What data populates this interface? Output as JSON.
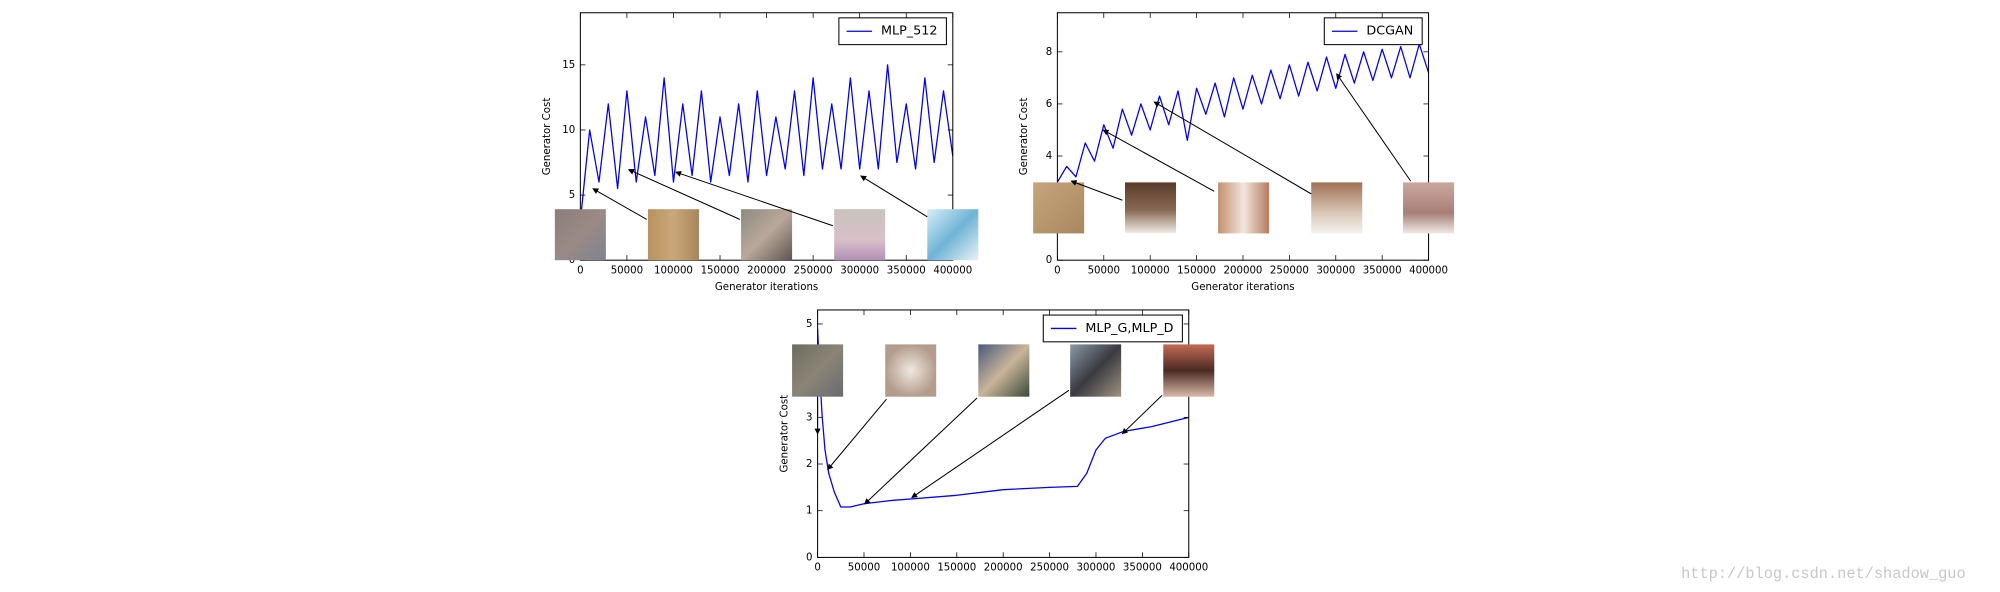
{
  "chart_data": [
    {
      "type": "line",
      "xlabel": "Generator iterations",
      "ylabel": "Generator Cost",
      "x": [
        0,
        10000,
        20000,
        30000,
        40000,
        50000,
        60000,
        70000,
        80000,
        90000,
        100000,
        110000,
        120000,
        130000,
        140000,
        150000,
        160000,
        170000,
        180000,
        190000,
        200000,
        210000,
        220000,
        230000,
        240000,
        250000,
        260000,
        270000,
        280000,
        290000,
        300000,
        310000,
        320000,
        330000,
        340000,
        350000,
        360000,
        370000,
        380000,
        390000,
        400000
      ],
      "series": [
        {
          "name": "MLP_512",
          "color": "#0000ff",
          "values": [
            3,
            10,
            6,
            12,
            5.5,
            13,
            6,
            11,
            6.5,
            14,
            6,
            12,
            6.5,
            13,
            6,
            11,
            6.5,
            12,
            6,
            13,
            6.5,
            11,
            7,
            13,
            6.5,
            14,
            7,
            12,
            7,
            14,
            7,
            13,
            7,
            15,
            7.5,
            12,
            7,
            14,
            7.5,
            13,
            8
          ]
        }
      ],
      "xlim": [
        0,
        400000
      ],
      "xticks": [
        0,
        50000,
        100000,
        150000,
        200000,
        250000,
        300000,
        350000,
        400000
      ],
      "ylim": [
        0,
        19
      ],
      "yticks": [
        0,
        5,
        10,
        15
      ],
      "legend": "upper right"
    },
    {
      "type": "line",
      "xlabel": "Generator iterations",
      "ylabel": "Generator Cost",
      "x": [
        0,
        10000,
        20000,
        30000,
        40000,
        50000,
        60000,
        70000,
        80000,
        90000,
        100000,
        110000,
        120000,
        130000,
        140000,
        150000,
        160000,
        170000,
        180000,
        190000,
        200000,
        210000,
        220000,
        230000,
        240000,
        250000,
        260000,
        270000,
        280000,
        290000,
        300000,
        310000,
        320000,
        330000,
        340000,
        350000,
        360000,
        370000,
        380000,
        390000,
        400000
      ],
      "series": [
        {
          "name": "DCGAN",
          "color": "#0000ff",
          "values": [
            3,
            3.6,
            3.2,
            4.5,
            3.8,
            5.2,
            4.3,
            5.8,
            4.8,
            6.0,
            5.0,
            6.3,
            5.2,
            6.5,
            4.6,
            6.6,
            5.6,
            6.8,
            5.5,
            7.0,
            5.8,
            7.1,
            6.0,
            7.3,
            6.2,
            7.5,
            6.3,
            7.6,
            6.5,
            7.8,
            6.6,
            7.9,
            6.8,
            8.0,
            6.9,
            8.1,
            7.0,
            8.2,
            7.0,
            8.3,
            7.2
          ]
        }
      ],
      "xlim": [
        0,
        400000
      ],
      "xticks": [
        0,
        50000,
        100000,
        150000,
        200000,
        250000,
        300000,
        350000,
        400000
      ],
      "ylim": [
        0,
        9.5
      ],
      "yticks": [
        0,
        2,
        4,
        6,
        8
      ],
      "legend": "upper right"
    },
    {
      "type": "line",
      "ylabel": "Generator Cost",
      "x": [
        0,
        2000,
        5000,
        8000,
        12000,
        18000,
        25000,
        35000,
        50000,
        80000,
        100000,
        150000,
        200000,
        250000,
        280000,
        290000,
        300000,
        310000,
        330000,
        360000,
        380000,
        400000
      ],
      "series": [
        {
          "name": "MLP_G,MLP_D",
          "color": "#0000ff",
          "values": [
            4.9,
            4.0,
            3.0,
            2.3,
            1.8,
            1.4,
            1.08,
            1.08,
            1.15,
            1.22,
            1.25,
            1.33,
            1.45,
            1.5,
            1.52,
            1.8,
            2.3,
            2.55,
            2.7,
            2.8,
            2.9,
            3.0
          ]
        }
      ],
      "xlim": [
        0,
        400000
      ],
      "xticks": [
        0,
        50000,
        100000,
        150000,
        200000,
        250000,
        300000,
        350000,
        400000
      ],
      "ylim": [
        0,
        5.3
      ],
      "yticks": [
        0,
        1,
        2,
        3,
        4,
        5
      ],
      "legend": "upper right"
    }
  ],
  "watermark": "http://blog.csdn.net/shadow_guo"
}
